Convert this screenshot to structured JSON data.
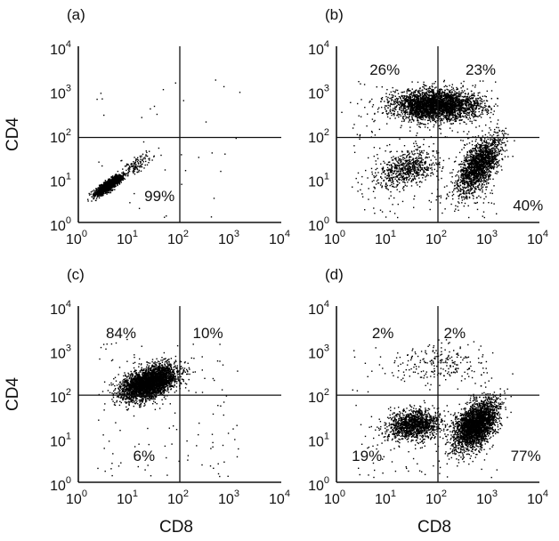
{
  "figure": {
    "xlabel": "CD8",
    "ylabel": "CD4"
  },
  "chart_data": [
    {
      "type": "scatter",
      "panel_label": "(a)",
      "xlabel": "",
      "ylabel": "CD4",
      "x_scale": "log",
      "y_scale": "log",
      "xlim": [
        1,
        10000
      ],
      "ylim": [
        1,
        10000
      ],
      "gate": {
        "x": 100,
        "y": 85
      },
      "x_ticks": [
        {
          "base": "10",
          "exp": "0"
        },
        {
          "base": "10",
          "exp": "1"
        },
        {
          "base": "10",
          "exp": "2"
        },
        {
          "base": "10",
          "exp": "3"
        },
        {
          "base": "10",
          "exp": "4"
        }
      ],
      "y_ticks": [
        {
          "base": "10",
          "exp": "0"
        },
        {
          "base": "10",
          "exp": "1"
        },
        {
          "base": "10",
          "exp": "2"
        },
        {
          "base": "10",
          "exp": "3"
        },
        {
          "base": "10",
          "exp": "4"
        }
      ],
      "quadrant_labels": [
        {
          "quadrant": "lower-left",
          "text": "99%",
          "x": 20,
          "y": 4
        }
      ],
      "populations": [
        {
          "cx": 4,
          "cy": 7,
          "sx": 0.13,
          "sy": 0.11,
          "rho": 0.85,
          "n": 1500
        },
        {
          "cx": 14,
          "cy": 20,
          "sx": 0.14,
          "sy": 0.12,
          "rho": 0.7,
          "n": 120
        }
      ],
      "scatter_noise": 40
    },
    {
      "type": "scatter",
      "panel_label": "(b)",
      "xlabel": "",
      "ylabel": "",
      "x_scale": "log",
      "y_scale": "log",
      "xlim": [
        1,
        10000
      ],
      "ylim": [
        1,
        10000
      ],
      "gate": {
        "x": 100,
        "y": 85
      },
      "x_ticks": [
        {
          "base": "10",
          "exp": "0"
        },
        {
          "base": "10",
          "exp": "1"
        },
        {
          "base": "10",
          "exp": "2"
        },
        {
          "base": "10",
          "exp": "3"
        },
        {
          "base": "10",
          "exp": "4"
        }
      ],
      "y_ticks": [
        {
          "base": "10",
          "exp": "0"
        },
        {
          "base": "10",
          "exp": "1"
        },
        {
          "base": "10",
          "exp": "2"
        },
        {
          "base": "10",
          "exp": "3"
        },
        {
          "base": "10",
          "exp": "4"
        }
      ],
      "quadrant_labels": [
        {
          "quadrant": "upper-left",
          "text": "26%",
          "x": 4.5,
          "y": 3000
        },
        {
          "quadrant": "upper-right",
          "text": "23%",
          "x": 350,
          "y": 3000
        },
        {
          "quadrant": "lower-right",
          "text": "40%",
          "x": 3000,
          "y": 2.5
        }
      ],
      "populations": [
        {
          "cx": 90,
          "cy": 450,
          "sx": 0.42,
          "sy": 0.17,
          "rho": 0.0,
          "n": 3000
        },
        {
          "cx": 25,
          "cy": 16,
          "sx": 0.3,
          "sy": 0.2,
          "rho": 0.3,
          "n": 650
        },
        {
          "cx": 650,
          "cy": 20,
          "sx": 0.22,
          "sy": 0.32,
          "rho": 0.6,
          "n": 1700
        }
      ],
      "scatter_noise": 250
    },
    {
      "type": "scatter",
      "panel_label": "(c)",
      "xlabel": "CD8",
      "ylabel": "CD4",
      "x_scale": "log",
      "y_scale": "log",
      "xlim": [
        1,
        10000
      ],
      "ylim": [
        1,
        10000
      ],
      "gate": {
        "x": 100,
        "y": 95
      },
      "x_ticks": [
        {
          "base": "10",
          "exp": "0"
        },
        {
          "base": "10",
          "exp": "1"
        },
        {
          "base": "10",
          "exp": "2"
        },
        {
          "base": "10",
          "exp": "3"
        },
        {
          "base": "10",
          "exp": "4"
        }
      ],
      "y_ticks": [
        {
          "base": "10",
          "exp": "0"
        },
        {
          "base": "10",
          "exp": "1"
        },
        {
          "base": "10",
          "exp": "2"
        },
        {
          "base": "10",
          "exp": "3"
        },
        {
          "base": "10",
          "exp": "4"
        }
      ],
      "quadrant_labels": [
        {
          "quadrant": "upper-left",
          "text": "84%",
          "x": 3.5,
          "y": 2500
        },
        {
          "quadrant": "upper-right",
          "text": "10%",
          "x": 180,
          "y": 2500
        },
        {
          "quadrant": "lower-left",
          "text": "6%",
          "x": 12,
          "y": 4
        }
      ],
      "populations": [
        {
          "cx": 25,
          "cy": 180,
          "sx": 0.27,
          "sy": 0.19,
          "rho": 0.45,
          "n": 3400
        }
      ],
      "scatter_noise": 120
    },
    {
      "type": "scatter",
      "panel_label": "(d)",
      "xlabel": "CD8",
      "ylabel": "",
      "x_scale": "log",
      "y_scale": "log",
      "xlim": [
        1,
        10000
      ],
      "ylim": [
        1,
        10000
      ],
      "gate": {
        "x": 100,
        "y": 95
      },
      "x_ticks": [
        {
          "base": "10",
          "exp": "0"
        },
        {
          "base": "10",
          "exp": "1"
        },
        {
          "base": "10",
          "exp": "2"
        },
        {
          "base": "10",
          "exp": "3"
        },
        {
          "base": "10",
          "exp": "4"
        }
      ],
      "y_ticks": [
        {
          "base": "10",
          "exp": "0"
        },
        {
          "base": "10",
          "exp": "1"
        },
        {
          "base": "10",
          "exp": "2"
        },
        {
          "base": "10",
          "exp": "3"
        },
        {
          "base": "10",
          "exp": "4"
        }
      ],
      "quadrant_labels": [
        {
          "quadrant": "upper-left",
          "text": "2%",
          "x": 5,
          "y": 2500
        },
        {
          "quadrant": "upper-right",
          "text": "2%",
          "x": 130,
          "y": 2500
        },
        {
          "quadrant": "lower-left",
          "text": "19%",
          "x": 2,
          "y": 4
        },
        {
          "quadrant": "lower-right",
          "text": "77%",
          "x": 2700,
          "y": 4
        }
      ],
      "populations": [
        {
          "cx": 35,
          "cy": 20,
          "sx": 0.26,
          "sy": 0.17,
          "rho": 0.15,
          "n": 1300
        },
        {
          "cx": 550,
          "cy": 20,
          "sx": 0.22,
          "sy": 0.28,
          "rho": 0.5,
          "n": 2600
        },
        {
          "cx": 100,
          "cy": 500,
          "sx": 0.45,
          "sy": 0.2,
          "rho": 0.0,
          "n": 200
        }
      ],
      "scatter_noise": 120
    }
  ]
}
